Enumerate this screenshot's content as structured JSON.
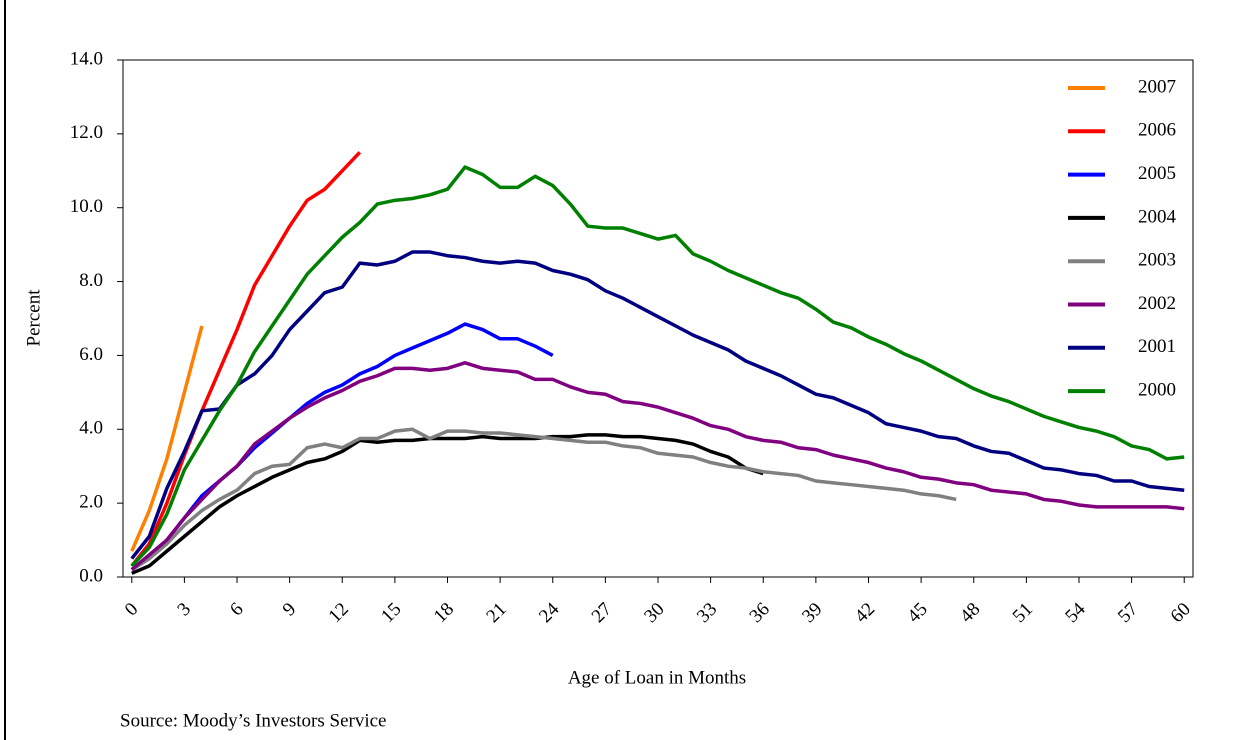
{
  "chart_data": {
    "type": "line",
    "y_label": "Percent",
    "x_label": "Age of Loan in Months",
    "source": "Source: Moody’s Investors Service",
    "x": [
      0,
      1,
      2,
      3,
      4,
      5,
      6,
      7,
      8,
      9,
      10,
      11,
      12,
      13,
      14,
      15,
      16,
      17,
      18,
      19,
      20,
      21,
      22,
      23,
      24,
      25,
      26,
      27,
      28,
      29,
      30,
      31,
      32,
      33,
      34,
      35,
      36,
      37,
      38,
      39,
      40,
      41,
      42,
      43,
      44,
      45,
      46,
      47,
      48,
      49,
      50,
      51,
      52,
      53,
      54,
      55,
      56,
      57,
      58,
      59,
      60
    ],
    "xlim": [
      -0.5,
      60.5
    ],
    "xticks": [
      0,
      3,
      6,
      9,
      12,
      15,
      18,
      21,
      24,
      27,
      30,
      33,
      36,
      39,
      42,
      45,
      48,
      51,
      54,
      57,
      60
    ],
    "ylim": [
      0,
      14
    ],
    "yticks": [
      {
        "value": 0,
        "label": "0.0"
      },
      {
        "value": 2,
        "label": "2.0"
      },
      {
        "value": 4,
        "label": "4.0"
      },
      {
        "value": 6,
        "label": "6.0"
      },
      {
        "value": 8,
        "label": "8.0"
      },
      {
        "value": 10,
        "label": "10.0"
      },
      {
        "value": 12,
        "label": "12.0"
      },
      {
        "value": 14,
        "label": "14.0"
      }
    ],
    "legend": "top-right",
    "series": [
      {
        "name": "2007",
        "color": "#ff8000",
        "values": [
          0.7,
          1.8,
          3.2,
          5.0,
          6.8,
          null,
          null,
          null,
          null,
          null,
          null,
          null,
          null,
          null,
          null,
          null,
          null,
          null,
          null,
          null,
          null,
          null,
          null,
          null,
          null,
          null,
          null,
          null,
          null,
          null,
          null,
          null,
          null,
          null,
          null,
          null,
          null,
          null,
          null,
          null,
          null,
          null,
          null,
          null,
          null,
          null,
          null,
          null,
          null,
          null,
          null,
          null,
          null,
          null,
          null,
          null,
          null,
          null,
          null,
          null,
          null
        ]
      },
      {
        "name": "2006",
        "color": "#ff0000",
        "values": [
          0.3,
          0.9,
          2.0,
          3.3,
          4.5,
          5.6,
          6.7,
          7.9,
          8.7,
          9.5,
          10.2,
          10.5,
          11.0,
          11.5,
          null,
          null,
          null,
          null,
          null,
          null,
          null,
          null,
          null,
          null,
          null,
          null,
          null,
          null,
          null,
          null,
          null,
          null,
          null,
          null,
          null,
          null,
          null,
          null,
          null,
          null,
          null,
          null,
          null,
          null,
          null,
          null,
          null,
          null,
          null,
          null,
          null,
          null,
          null,
          null,
          null,
          null,
          null,
          null,
          null,
          null,
          null
        ]
      },
      {
        "name": "2005",
        "color": "#0000ff",
        "values": [
          0.2,
          0.5,
          1.0,
          1.6,
          2.2,
          2.6,
          3.0,
          3.5,
          3.9,
          4.3,
          4.7,
          5.0,
          5.2,
          5.5,
          5.7,
          6.0,
          6.2,
          6.4,
          6.6,
          6.85,
          6.7,
          6.45,
          6.45,
          6.25,
          6.0,
          null,
          null,
          null,
          null,
          null,
          null,
          null,
          null,
          null,
          null,
          null,
          null,
          null,
          null,
          null,
          null,
          null,
          null,
          null,
          null,
          null,
          null,
          null,
          null,
          null,
          null,
          null,
          null,
          null,
          null,
          null,
          null,
          null,
          null,
          null,
          null
        ]
      },
      {
        "name": "2004",
        "color": "#000000",
        "values": [
          0.1,
          0.3,
          0.7,
          1.1,
          1.5,
          1.9,
          2.2,
          2.45,
          2.7,
          2.9,
          3.1,
          3.2,
          3.4,
          3.7,
          3.65,
          3.7,
          3.7,
          3.75,
          3.75,
          3.75,
          3.8,
          3.75,
          3.75,
          3.75,
          3.8,
          3.8,
          3.85,
          3.85,
          3.8,
          3.8,
          3.75,
          3.7,
          3.6,
          3.4,
          3.25,
          2.95,
          2.8,
          null,
          null,
          null,
          null,
          null,
          null,
          null,
          null,
          null,
          null,
          null,
          null,
          null,
          null,
          null,
          null,
          null,
          null,
          null,
          null,
          null,
          null,
          null,
          null
        ]
      },
      {
        "name": "2003",
        "color": "#808080",
        "values": [
          0.2,
          0.5,
          0.9,
          1.4,
          1.8,
          2.1,
          2.35,
          2.8,
          3.0,
          3.05,
          3.5,
          3.6,
          3.5,
          3.75,
          3.75,
          3.95,
          4.0,
          3.75,
          3.95,
          3.95,
          3.9,
          3.9,
          3.85,
          3.8,
          3.75,
          3.7,
          3.65,
          3.65,
          3.55,
          3.5,
          3.35,
          3.3,
          3.25,
          3.1,
          3.0,
          2.95,
          2.85,
          2.8,
          2.75,
          2.6,
          2.55,
          2.5,
          2.45,
          2.4,
          2.35,
          2.25,
          2.2,
          2.1,
          null,
          null,
          null,
          null,
          null,
          null,
          null,
          null,
          null,
          null,
          null,
          null,
          null
        ]
      },
      {
        "name": "2002",
        "color": "#800080",
        "values": [
          0.2,
          0.6,
          1.0,
          1.6,
          2.1,
          2.6,
          3.0,
          3.6,
          3.95,
          4.3,
          4.6,
          4.85,
          5.05,
          5.3,
          5.45,
          5.65,
          5.65,
          5.6,
          5.65,
          5.8,
          5.65,
          5.6,
          5.55,
          5.35,
          5.35,
          5.15,
          5.0,
          4.95,
          4.75,
          4.7,
          4.6,
          4.45,
          4.3,
          4.1,
          4.0,
          3.8,
          3.7,
          3.65,
          3.5,
          3.45,
          3.3,
          3.2,
          3.1,
          2.95,
          2.85,
          2.7,
          2.65,
          2.55,
          2.5,
          2.35,
          2.3,
          2.25,
          2.1,
          2.05,
          1.95,
          1.9,
          1.9,
          1.9,
          1.9,
          1.9,
          1.85
        ]
      },
      {
        "name": "2001",
        "color": "#000080",
        "values": [
          0.5,
          1.1,
          2.4,
          3.4,
          4.5,
          4.55,
          5.2,
          5.5,
          6.0,
          6.7,
          7.2,
          7.7,
          7.85,
          8.5,
          8.45,
          8.55,
          8.8,
          8.8,
          8.7,
          8.65,
          8.55,
          8.5,
          8.55,
          8.5,
          8.3,
          8.2,
          8.05,
          7.75,
          7.55,
          7.3,
          7.05,
          6.8,
          6.55,
          6.35,
          6.15,
          5.85,
          5.65,
          5.45,
          5.2,
          4.95,
          4.85,
          4.65,
          4.45,
          4.15,
          4.05,
          3.95,
          3.8,
          3.75,
          3.55,
          3.4,
          3.35,
          3.15,
          2.95,
          2.9,
          2.8,
          2.75,
          2.6,
          2.6,
          2.45,
          2.4,
          2.35
        ]
      },
      {
        "name": "2000",
        "color": "#008000",
        "values": [
          0.3,
          0.8,
          1.7,
          2.9,
          3.7,
          4.5,
          5.2,
          6.1,
          6.8,
          7.5,
          8.2,
          8.7,
          9.2,
          9.6,
          10.1,
          10.2,
          10.25,
          10.35,
          10.5,
          11.1,
          10.9,
          10.55,
          10.55,
          10.85,
          10.6,
          10.1,
          9.5,
          9.45,
          9.45,
          9.3,
          9.15,
          9.25,
          8.75,
          8.55,
          8.3,
          8.1,
          7.9,
          7.7,
          7.55,
          7.25,
          6.9,
          6.75,
          6.5,
          6.3,
          6.05,
          5.85,
          5.6,
          5.35,
          5.1,
          4.9,
          4.75,
          4.55,
          4.35,
          4.2,
          4.05,
          3.95,
          3.8,
          3.55,
          3.45,
          3.2,
          3.25
        ]
      }
    ]
  }
}
